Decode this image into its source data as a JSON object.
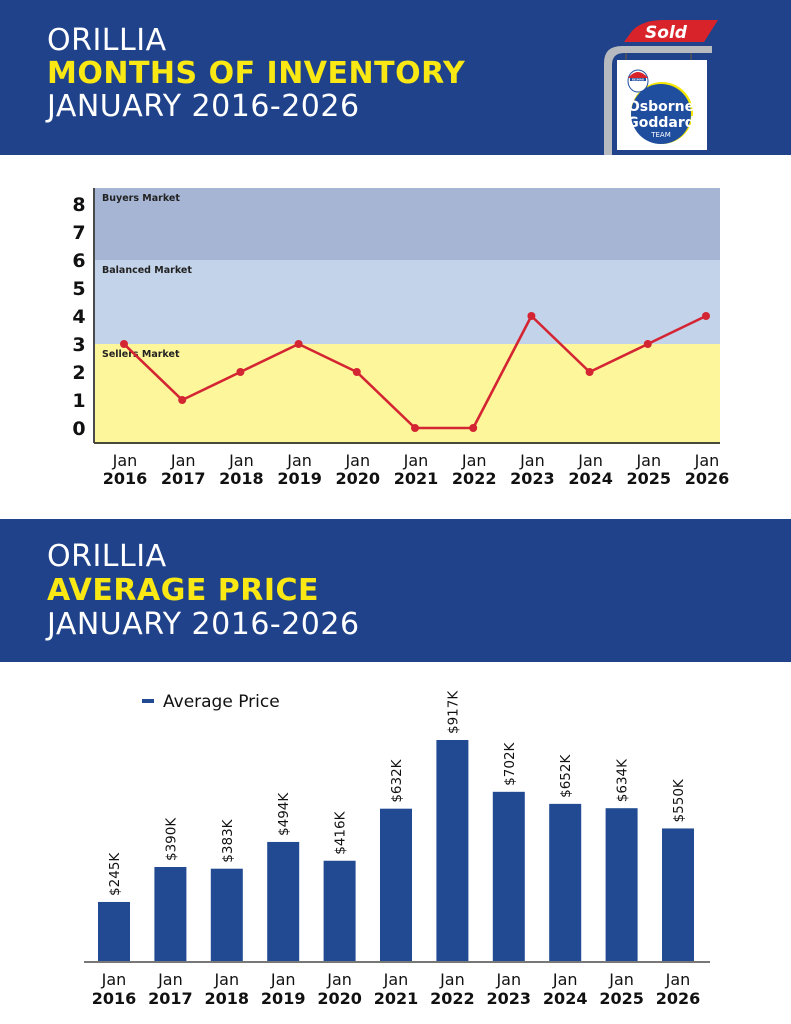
{
  "header": {
    "city": "ORILLIA",
    "metric": "MONTHS OF INVENTORY",
    "period": "JANUARY 2016-2026"
  },
  "logo": {
    "sign_text": "Sold",
    "brand_line1": "Osborne",
    "brand_line2": "Goddard",
    "brand_line3": "TEAM",
    "balloon_text": "RE/MAX",
    "colors": {
      "sold_red": "#d8232a",
      "brand_blue": "#1f4e9e",
      "accent_yellow": "#f3e600"
    }
  },
  "section2": {
    "city": "ORILLIA",
    "metric": "AVERAGE PRICE",
    "period": "JANUARY 2016-2026"
  },
  "colors": {
    "banner_bg": "#1f428a",
    "banner_yellow": "#f9e813",
    "buyers_band": "#a5b5d3",
    "balanced_band": "#c3d3ea",
    "sellers_band": "#fef69a",
    "line_red": "#d42533",
    "bar_blue": "#214a93"
  },
  "chart_data": [
    {
      "type": "line",
      "title": "ORILLIA MONTHS OF INVENTORY JANUARY 2016-2026",
      "categories": [
        "Jan 2016",
        "Jan 2017",
        "Jan 2018",
        "Jan 2019",
        "Jan 2020",
        "Jan 2021",
        "Jan 2022",
        "Jan 2023",
        "Jan 2024",
        "Jan 2025",
        "Jan 2026"
      ],
      "category_lines": [
        [
          "Jan",
          "2016"
        ],
        [
          "Jan",
          "2017"
        ],
        [
          "Jan",
          "2018"
        ],
        [
          "Jan",
          "2019"
        ],
        [
          "Jan",
          "2020"
        ],
        [
          "Jan",
          "2021"
        ],
        [
          "Jan",
          "2022"
        ],
        [
          "Jan",
          "2023"
        ],
        [
          "Jan",
          "2024"
        ],
        [
          "Jan",
          "2025"
        ],
        [
          "Jan",
          "2026"
        ]
      ],
      "series": [
        {
          "name": "Months of Inventory",
          "values": [
            3,
            1,
            2,
            3,
            2,
            0,
            0,
            4,
            2,
            3,
            4
          ]
        }
      ],
      "yticks": [
        0,
        1,
        2,
        3,
        4,
        5,
        6,
        7,
        8
      ],
      "ylim": [
        0,
        8.6
      ],
      "bands": [
        {
          "label": "Buyers Market",
          "from": 6,
          "to": 8.6
        },
        {
          "label": "Balanced Market",
          "from": 3,
          "to": 6
        },
        {
          "label": "Sellers Market",
          "from": -0.55,
          "to": 3
        }
      ],
      "xlabel": "",
      "ylabel": "",
      "grid": false
    },
    {
      "type": "bar",
      "title": "ORILLIA AVERAGE PRICE JANUARY 2016-2026",
      "categories": [
        "Jan 2016",
        "Jan 2017",
        "Jan 2018",
        "Jan 2019",
        "Jan 2020",
        "Jan 2021",
        "Jan 2022",
        "Jan 2023",
        "Jan 2024",
        "Jan 2025",
        "Jan 2026"
      ],
      "category_lines": [
        [
          "Jan",
          "2016"
        ],
        [
          "Jan",
          "2017"
        ],
        [
          "Jan",
          "2018"
        ],
        [
          "Jan",
          "2019"
        ],
        [
          "Jan",
          "2020"
        ],
        [
          "Jan",
          "2021"
        ],
        [
          "Jan",
          "2022"
        ],
        [
          "Jan",
          "2023"
        ],
        [
          "Jan",
          "2024"
        ],
        [
          "Jan",
          "2025"
        ],
        [
          "Jan",
          "2026"
        ]
      ],
      "series": [
        {
          "name": "Average Price",
          "values": [
            245,
            390,
            383,
            494,
            416,
            632,
            917,
            702,
            652,
            634,
            550
          ]
        }
      ],
      "data_labels": [
        "$245K",
        "$390K",
        "$383K",
        "$494K",
        "$416K",
        "$632K",
        "$917K",
        "$702K",
        "$652K",
        "$634K",
        "$550K"
      ],
      "legend": {
        "label": "Average Price",
        "position": "top-left"
      },
      "units": "thousands of dollars",
      "ylim": [
        0,
        917
      ],
      "xlabel": "",
      "ylabel": "",
      "grid": false
    }
  ]
}
